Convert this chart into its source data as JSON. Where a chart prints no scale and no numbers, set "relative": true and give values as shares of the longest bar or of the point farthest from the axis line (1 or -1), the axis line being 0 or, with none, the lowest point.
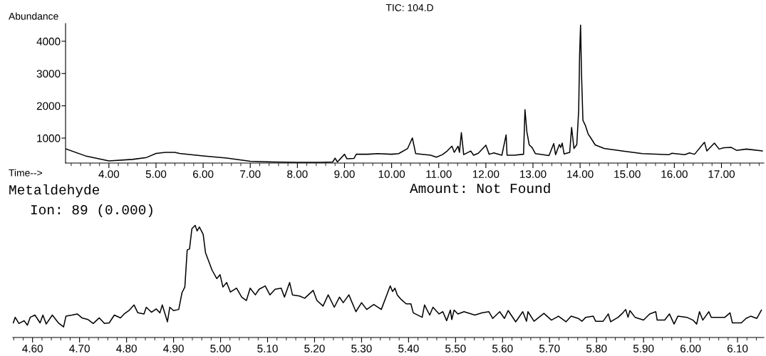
{
  "chart_data": [
    {
      "type": "line",
      "title": "TIC: 104.D",
      "xlabel": "Time-->",
      "ylabel": "Abundance",
      "color": "#000000",
      "x": [
        3.08,
        3.5,
        4.0,
        4.5,
        4.8,
        5.0,
        5.2,
        5.4,
        5.5,
        6.0,
        6.5,
        7.0,
        7.5,
        8.0,
        8.5,
        8.75,
        8.8,
        8.85,
        9.0,
        9.05,
        9.2,
        9.25,
        9.5,
        9.7,
        10.0,
        10.15,
        10.34,
        10.44,
        10.51,
        10.83,
        10.95,
        11.08,
        11.18,
        11.28,
        11.33,
        11.41,
        11.44,
        11.48,
        11.53,
        11.68,
        11.74,
        11.84,
        12.0,
        12.07,
        12.17,
        12.34,
        12.43,
        12.45,
        12.6,
        12.8,
        12.83,
        12.87,
        12.92,
        12.98,
        13.05,
        13.34,
        13.44,
        13.48,
        13.56,
        13.59,
        13.62,
        13.66,
        13.78,
        13.82,
        13.87,
        13.93,
        13.97,
        13.99,
        14.01,
        14.03,
        14.06,
        14.11,
        14.17,
        14.22,
        14.32,
        14.51,
        14.89,
        15.32,
        15.89,
        15.95,
        16.22,
        16.32,
        16.43,
        16.64,
        16.69,
        16.85,
        16.95,
        17.05,
        17.21,
        17.32,
        17.53,
        17.87
      ],
      "values": [
        670,
        450,
        295,
        340,
        400,
        525,
        560,
        560,
        525,
        450,
        380,
        280,
        258,
        250,
        250,
        260,
        380,
        260,
        500,
        360,
        370,
        500,
        500,
        520,
        500,
        520,
        678,
        1005,
        520,
        470,
        410,
        488,
        600,
        750,
        560,
        750,
        560,
        1170,
        488,
        600,
        470,
        530,
        780,
        500,
        540,
        470,
        1100,
        470,
        470,
        500,
        1880,
        1200,
        790,
        710,
        520,
        460,
        830,
        488,
        800,
        710,
        845,
        510,
        560,
        1330,
        678,
        800,
        1860,
        3610,
        4500,
        3000,
        1550,
        1400,
        1130,
        1020,
        790,
        678,
        600,
        520,
        488,
        530,
        488,
        540,
        500,
        870,
        600,
        845,
        660,
        700,
        710,
        620,
        660,
        600
      ],
      "xlim": [
        3.08,
        17.9
      ],
      "ylim": [
        227,
        4550
      ],
      "yticks": [
        1000,
        2000,
        3000,
        4000
      ],
      "xticks": [
        {
          "value": 3.2,
          "label": null
        },
        {
          "value": 3.4,
          "label": null
        },
        {
          "value": 3.6,
          "label": null
        },
        {
          "value": 3.8,
          "label": null
        },
        {
          "value": 4,
          "label": "4.00"
        },
        {
          "value": 4.2,
          "label": null
        },
        {
          "value": 4.4,
          "label": null
        },
        {
          "value": 4.6,
          "label": null
        },
        {
          "value": 4.8,
          "label": null
        },
        {
          "value": 5,
          "label": "5.00"
        },
        {
          "value": 5.2,
          "label": null
        },
        {
          "value": 5.4,
          "label": null
        },
        {
          "value": 5.6,
          "label": null
        },
        {
          "value": 5.8,
          "label": null
        },
        {
          "value": 6,
          "label": "6.00"
        },
        {
          "value": 6.2,
          "label": null
        },
        {
          "value": 6.4,
          "label": null
        },
        {
          "value": 6.6,
          "label": null
        },
        {
          "value": 6.8,
          "label": null
        },
        {
          "value": 7,
          "label": "7.00"
        },
        {
          "value": 7.2,
          "label": null
        },
        {
          "value": 7.4,
          "label": null
        },
        {
          "value": 7.6,
          "label": null
        },
        {
          "value": 7.8,
          "label": null
        },
        {
          "value": 8,
          "label": "8.00"
        },
        {
          "value": 8.2,
          "label": null
        },
        {
          "value": 8.4,
          "label": null
        },
        {
          "value": 8.6,
          "label": null
        },
        {
          "value": 8.8,
          "label": null
        },
        {
          "value": 9,
          "label": "9.00"
        },
        {
          "value": 9.2,
          "label": null
        },
        {
          "value": 9.4,
          "label": null
        },
        {
          "value": 9.6,
          "label": null
        },
        {
          "value": 9.8,
          "label": null
        },
        {
          "value": 10,
          "label": "10.00"
        },
        {
          "value": 10.2,
          "label": null
        },
        {
          "value": 10.4,
          "label": null
        },
        {
          "value": 10.6,
          "label": null
        },
        {
          "value": 10.8,
          "label": null
        },
        {
          "value": 11,
          "label": "11.00"
        },
        {
          "value": 11.2,
          "label": null
        },
        {
          "value": 11.4,
          "label": null
        },
        {
          "value": 11.6,
          "label": null
        },
        {
          "value": 11.8,
          "label": null
        },
        {
          "value": 12,
          "label": "12.00"
        },
        {
          "value": 12.2,
          "label": null
        },
        {
          "value": 12.4,
          "label": null
        },
        {
          "value": 12.6,
          "label": null
        },
        {
          "value": 12.8,
          "label": null
        },
        {
          "value": 13,
          "label": "13.00"
        },
        {
          "value": 13.2,
          "label": null
        },
        {
          "value": 13.4,
          "label": null
        },
        {
          "value": 13.6,
          "label": null
        },
        {
          "value": 13.8,
          "label": null
        },
        {
          "value": 14,
          "label": "14.00"
        },
        {
          "value": 14.2,
          "label": null
        },
        {
          "value": 14.4,
          "label": null
        },
        {
          "value": 14.6,
          "label": null
        },
        {
          "value": 14.8,
          "label": null
        },
        {
          "value": 15,
          "label": "15.00"
        },
        {
          "value": 15.2,
          "label": null
        },
        {
          "value": 15.4,
          "label": null
        },
        {
          "value": 15.6,
          "label": null
        },
        {
          "value": 15.8,
          "label": null
        },
        {
          "value": 16,
          "label": "16.00"
        },
        {
          "value": 16.2,
          "label": null
        },
        {
          "value": 16.4,
          "label": null
        },
        {
          "value": 16.6,
          "label": null
        },
        {
          "value": 16.8,
          "label": null
        },
        {
          "value": 17,
          "label": "17.00"
        },
        {
          "value": 17.2,
          "label": null
        },
        {
          "value": 17.4,
          "label": null
        },
        {
          "value": 17.6,
          "label": null
        },
        {
          "value": 17.8,
          "label": null
        }
      ]
    },
    {
      "type": "line",
      "title": "Metaldehyde",
      "subtitle": "Amount: Not Found",
      "annotations": [
        "Ion: 89 (0.000)"
      ],
      "color": "#000000",
      "relative": true,
      "x": [
        4.559,
        4.563,
        4.571,
        4.582,
        4.589,
        4.595,
        4.605,
        4.616,
        4.622,
        4.629,
        4.642,
        4.655,
        4.666,
        4.671,
        4.684,
        4.695,
        4.705,
        4.718,
        4.729,
        4.742,
        4.753,
        4.763,
        4.774,
        4.787,
        4.795,
        4.805,
        4.816,
        4.824,
        4.837,
        4.842,
        4.853,
        4.863,
        4.871,
        4.876,
        4.887,
        4.892,
        4.9,
        4.911,
        4.918,
        4.924,
        4.929,
        4.934,
        4.939,
        4.946,
        4.95,
        4.955,
        4.963,
        4.968,
        4.982,
        4.992,
        4.999,
        5.005,
        5.013,
        5.021,
        5.034,
        5.045,
        5.055,
        5.063,
        5.074,
        5.082,
        5.095,
        5.105,
        5.116,
        5.129,
        5.136,
        5.147,
        5.153,
        5.168,
        5.179,
        5.197,
        5.205,
        5.218,
        5.229,
        5.242,
        5.253,
        5.261,
        5.273,
        5.288,
        5.3,
        5.311,
        5.326,
        5.342,
        5.361,
        5.366,
        5.371,
        5.376,
        5.384,
        5.395,
        5.405,
        5.41,
        5.429,
        5.434,
        5.445,
        5.452,
        5.465,
        5.473,
        5.481,
        5.489,
        5.492,
        5.497,
        5.505,
        5.518,
        5.541,
        5.557,
        5.571,
        5.579,
        5.594,
        5.604,
        5.612,
        5.628,
        5.643,
        5.651,
        5.654,
        5.667,
        5.688,
        5.704,
        5.719,
        5.735,
        5.746,
        5.761,
        5.769,
        5.777,
        5.793,
        5.798,
        5.814,
        5.825,
        5.83,
        5.846,
        5.856,
        5.862,
        5.867,
        5.871,
        5.882,
        5.9,
        5.913,
        5.926,
        5.929,
        5.945,
        5.955,
        5.965,
        5.973,
        5.992,
        6.005,
        6.013,
        6.019,
        6.026,
        6.039,
        6.044,
        6.073,
        6.084,
        6.089,
        6.108,
        6.118,
        6.128,
        6.141,
        6.151
      ],
      "values": [
        0.13,
        0.18,
        0.125,
        0.15,
        0.11,
        0.18,
        0.2,
        0.13,
        0.2,
        0.12,
        0.2,
        0.13,
        0.094,
        0.19,
        0.2,
        0.21,
        0.175,
        0.16,
        0.125,
        0.175,
        0.125,
        0.13,
        0.2,
        0.175,
        0.21,
        0.24,
        0.29,
        0.22,
        0.21,
        0.27,
        0.225,
        0.255,
        0.22,
        0.29,
        0.14,
        0.27,
        0.24,
        0.25,
        0.4,
        0.45,
        0.78,
        0.79,
        0.97,
        1.0,
        0.95,
        0.985,
        0.92,
        0.755,
        0.6,
        0.525,
        0.56,
        0.45,
        0.49,
        0.405,
        0.44,
        0.36,
        0.33,
        0.44,
        0.38,
        0.43,
        0.46,
        0.38,
        0.43,
        0.44,
        0.36,
        0.49,
        0.38,
        0.37,
        0.35,
        0.42,
        0.33,
        0.28,
        0.38,
        0.27,
        0.36,
        0.31,
        0.38,
        0.23,
        0.31,
        0.25,
        0.295,
        0.25,
        0.46,
        0.41,
        0.44,
        0.38,
        0.34,
        0.3,
        0.3,
        0.22,
        0.18,
        0.29,
        0.2,
        0.27,
        0.21,
        0.23,
        0.15,
        0.245,
        0.16,
        0.245,
        0.21,
        0.23,
        0.2,
        0.22,
        0.23,
        0.17,
        0.23,
        0.17,
        0.24,
        0.14,
        0.23,
        0.145,
        0.23,
        0.145,
        0.215,
        0.155,
        0.19,
        0.14,
        0.19,
        0.17,
        0.145,
        0.18,
        0.19,
        0.145,
        0.145,
        0.21,
        0.14,
        0.18,
        0.22,
        0.25,
        0.18,
        0.24,
        0.18,
        0.155,
        0.21,
        0.23,
        0.155,
        0.155,
        0.21,
        0.12,
        0.19,
        0.18,
        0.155,
        0.12,
        0.23,
        0.155,
        0.23,
        0.18,
        0.18,
        0.22,
        0.13,
        0.13,
        0.17,
        0.19,
        0.17,
        0.245
      ],
      "xlim": [
        4.558,
        6.156
      ],
      "xticks": [
        {
          "value": 4.56,
          "label": null
        },
        {
          "value": 4.58,
          "label": null
        },
        {
          "value": 4.6,
          "label": "4.60"
        },
        {
          "value": 4.62,
          "label": null
        },
        {
          "value": 4.64,
          "label": null
        },
        {
          "value": 4.66,
          "label": null
        },
        {
          "value": 4.68,
          "label": null
        },
        {
          "value": 4.7,
          "label": "4.70"
        },
        {
          "value": 4.72,
          "label": null
        },
        {
          "value": 4.74,
          "label": null
        },
        {
          "value": 4.76,
          "label": null
        },
        {
          "value": 4.78,
          "label": null
        },
        {
          "value": 4.8,
          "label": "4.80"
        },
        {
          "value": 4.82,
          "label": null
        },
        {
          "value": 4.84,
          "label": null
        },
        {
          "value": 4.86,
          "label": null
        },
        {
          "value": 4.88,
          "label": null
        },
        {
          "value": 4.9,
          "label": "4.90"
        },
        {
          "value": 4.92,
          "label": null
        },
        {
          "value": 4.94,
          "label": null
        },
        {
          "value": 4.96,
          "label": null
        },
        {
          "value": 4.98,
          "label": null
        },
        {
          "value": 5.0,
          "label": "5.00"
        },
        {
          "value": 5.02,
          "label": null
        },
        {
          "value": 5.04,
          "label": null
        },
        {
          "value": 5.06,
          "label": null
        },
        {
          "value": 5.08,
          "label": null
        },
        {
          "value": 5.1,
          "label": "5.10"
        },
        {
          "value": 5.12,
          "label": null
        },
        {
          "value": 5.14,
          "label": null
        },
        {
          "value": 5.16,
          "label": null
        },
        {
          "value": 5.18,
          "label": null
        },
        {
          "value": 5.2,
          "label": "5.20"
        },
        {
          "value": 5.22,
          "label": null
        },
        {
          "value": 5.24,
          "label": null
        },
        {
          "value": 5.26,
          "label": null
        },
        {
          "value": 5.28,
          "label": null
        },
        {
          "value": 5.3,
          "label": "5.30"
        },
        {
          "value": 5.32,
          "label": null
        },
        {
          "value": 5.34,
          "label": null
        },
        {
          "value": 5.36,
          "label": null
        },
        {
          "value": 5.38,
          "label": null
        },
        {
          "value": 5.4,
          "label": "5.40"
        },
        {
          "value": 5.42,
          "label": null
        },
        {
          "value": 5.44,
          "label": null
        },
        {
          "value": 5.46,
          "label": null
        },
        {
          "value": 5.48,
          "label": null
        },
        {
          "value": 5.5,
          "label": "5.50"
        },
        {
          "value": 5.52,
          "label": null
        },
        {
          "value": 5.54,
          "label": null
        },
        {
          "value": 5.56,
          "label": null
        },
        {
          "value": 5.58,
          "label": null
        },
        {
          "value": 5.6,
          "label": "5.60"
        },
        {
          "value": 5.62,
          "label": null
        },
        {
          "value": 5.64,
          "label": null
        },
        {
          "value": 5.66,
          "label": null
        },
        {
          "value": 5.68,
          "label": null
        },
        {
          "value": 5.7,
          "label": "5.70"
        },
        {
          "value": 5.72,
          "label": null
        },
        {
          "value": 5.74,
          "label": null
        },
        {
          "value": 5.76,
          "label": null
        },
        {
          "value": 5.78,
          "label": null
        },
        {
          "value": 5.8,
          "label": "5.80"
        },
        {
          "value": 5.82,
          "label": null
        },
        {
          "value": 5.84,
          "label": null
        },
        {
          "value": 5.86,
          "label": null
        },
        {
          "value": 5.88,
          "label": null
        },
        {
          "value": 5.9,
          "label": "5.90"
        },
        {
          "value": 5.92,
          "label": null
        },
        {
          "value": 5.94,
          "label": null
        },
        {
          "value": 5.96,
          "label": null
        },
        {
          "value": 5.98,
          "label": null
        },
        {
          "value": 6.0,
          "label": "6.00"
        },
        {
          "value": 6.02,
          "label": null
        },
        {
          "value": 6.04,
          "label": null
        },
        {
          "value": 6.06,
          "label": null
        },
        {
          "value": 6.08,
          "label": null
        },
        {
          "value": 6.1,
          "label": "6.10"
        },
        {
          "value": 6.12,
          "label": null
        },
        {
          "value": 6.14,
          "label": null
        }
      ]
    }
  ]
}
